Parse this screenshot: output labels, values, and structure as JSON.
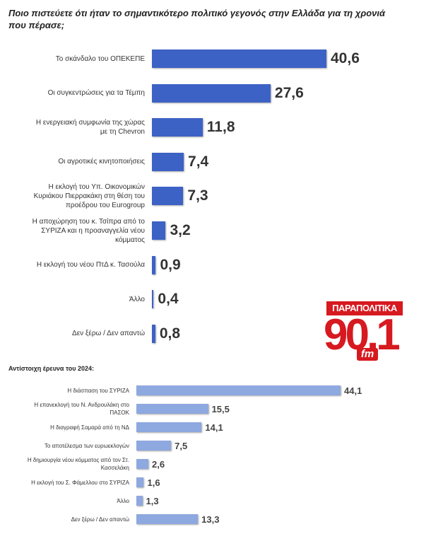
{
  "chart_data": [
    {
      "type": "bar",
      "orientation": "horizontal",
      "title": "Ποιο πιστεύετε ότι ήταν το σημαντικότερο πολιτικό γεγονός στην Ελλάδα για τη χρονιά που πέρασε;",
      "categories": [
        "Το σκάνδαλο του ΟΠΕΚΕΠΕ",
        "Οι συγκεντρώσεις για τα Τέμπη",
        "Η ενεργειακή συμφωνία της χώρας με τη Chevron",
        "Οι αγροτικές κινητοποιήσεις",
        "Η εκλογή του Υπ. Οικονομικών Κυριάκου Πιερρακάκη στη θέση του προέδρου του Eurogroup",
        "Η αποχώρηση του κ. Τσίπρα από το ΣΥΡΙΖΑ και η προαναγγελία νέου κόμματος",
        "Η εκλογή του νέου ΠτΔ κ. Τασούλα",
        "Άλλο",
        "Δεν ξέρω / Δεν απαντώ"
      ],
      "values": [
        40.6,
        27.6,
        11.8,
        7.4,
        7.3,
        3.2,
        0.9,
        0.4,
        0.8
      ],
      "value_labels": [
        "40,6",
        "27,6",
        "11,8",
        "7,4",
        "7,3",
        "3,2",
        "0,9",
        "0,4",
        "0,8"
      ],
      "color": "#3d62c6"
    },
    {
      "type": "bar",
      "orientation": "horizontal",
      "title": "Αντίστοιχη έρευνα του 2024:",
      "categories": [
        "Η διάσπαση του ΣΥΡΙΖΑ",
        "Η επανεκλογή του Ν. Ανδρουλάκη στο ΠΑΣΟΚ",
        "Η διαγραφή Σαμαρά από τη ΝΔ",
        "Το αποτέλεσμα των ευρωεκλογών",
        "Η δημιουργία νέου κόμματος από τον Στ. Κασσελάκη",
        "Η εκλογή του Σ. Φάμελλου στο ΣΥΡΙΖΑ",
        "Άλλο",
        "Δεν ξέρω / Δεν απαντώ"
      ],
      "values": [
        44.1,
        15.5,
        14.1,
        7.5,
        2.6,
        1.6,
        1.3,
        13.3
      ],
      "value_labels": [
        "44,1",
        "15,5",
        "14,1",
        "7,5",
        "2,6",
        "1,6",
        "1,3",
        "13,3"
      ],
      "color": "#8ea8e0"
    }
  ],
  "logo": {
    "name": "ΠΑΡΑΠΟΛΙΤΙΚΑ",
    "frequency": "90.1",
    "band": "fm"
  }
}
